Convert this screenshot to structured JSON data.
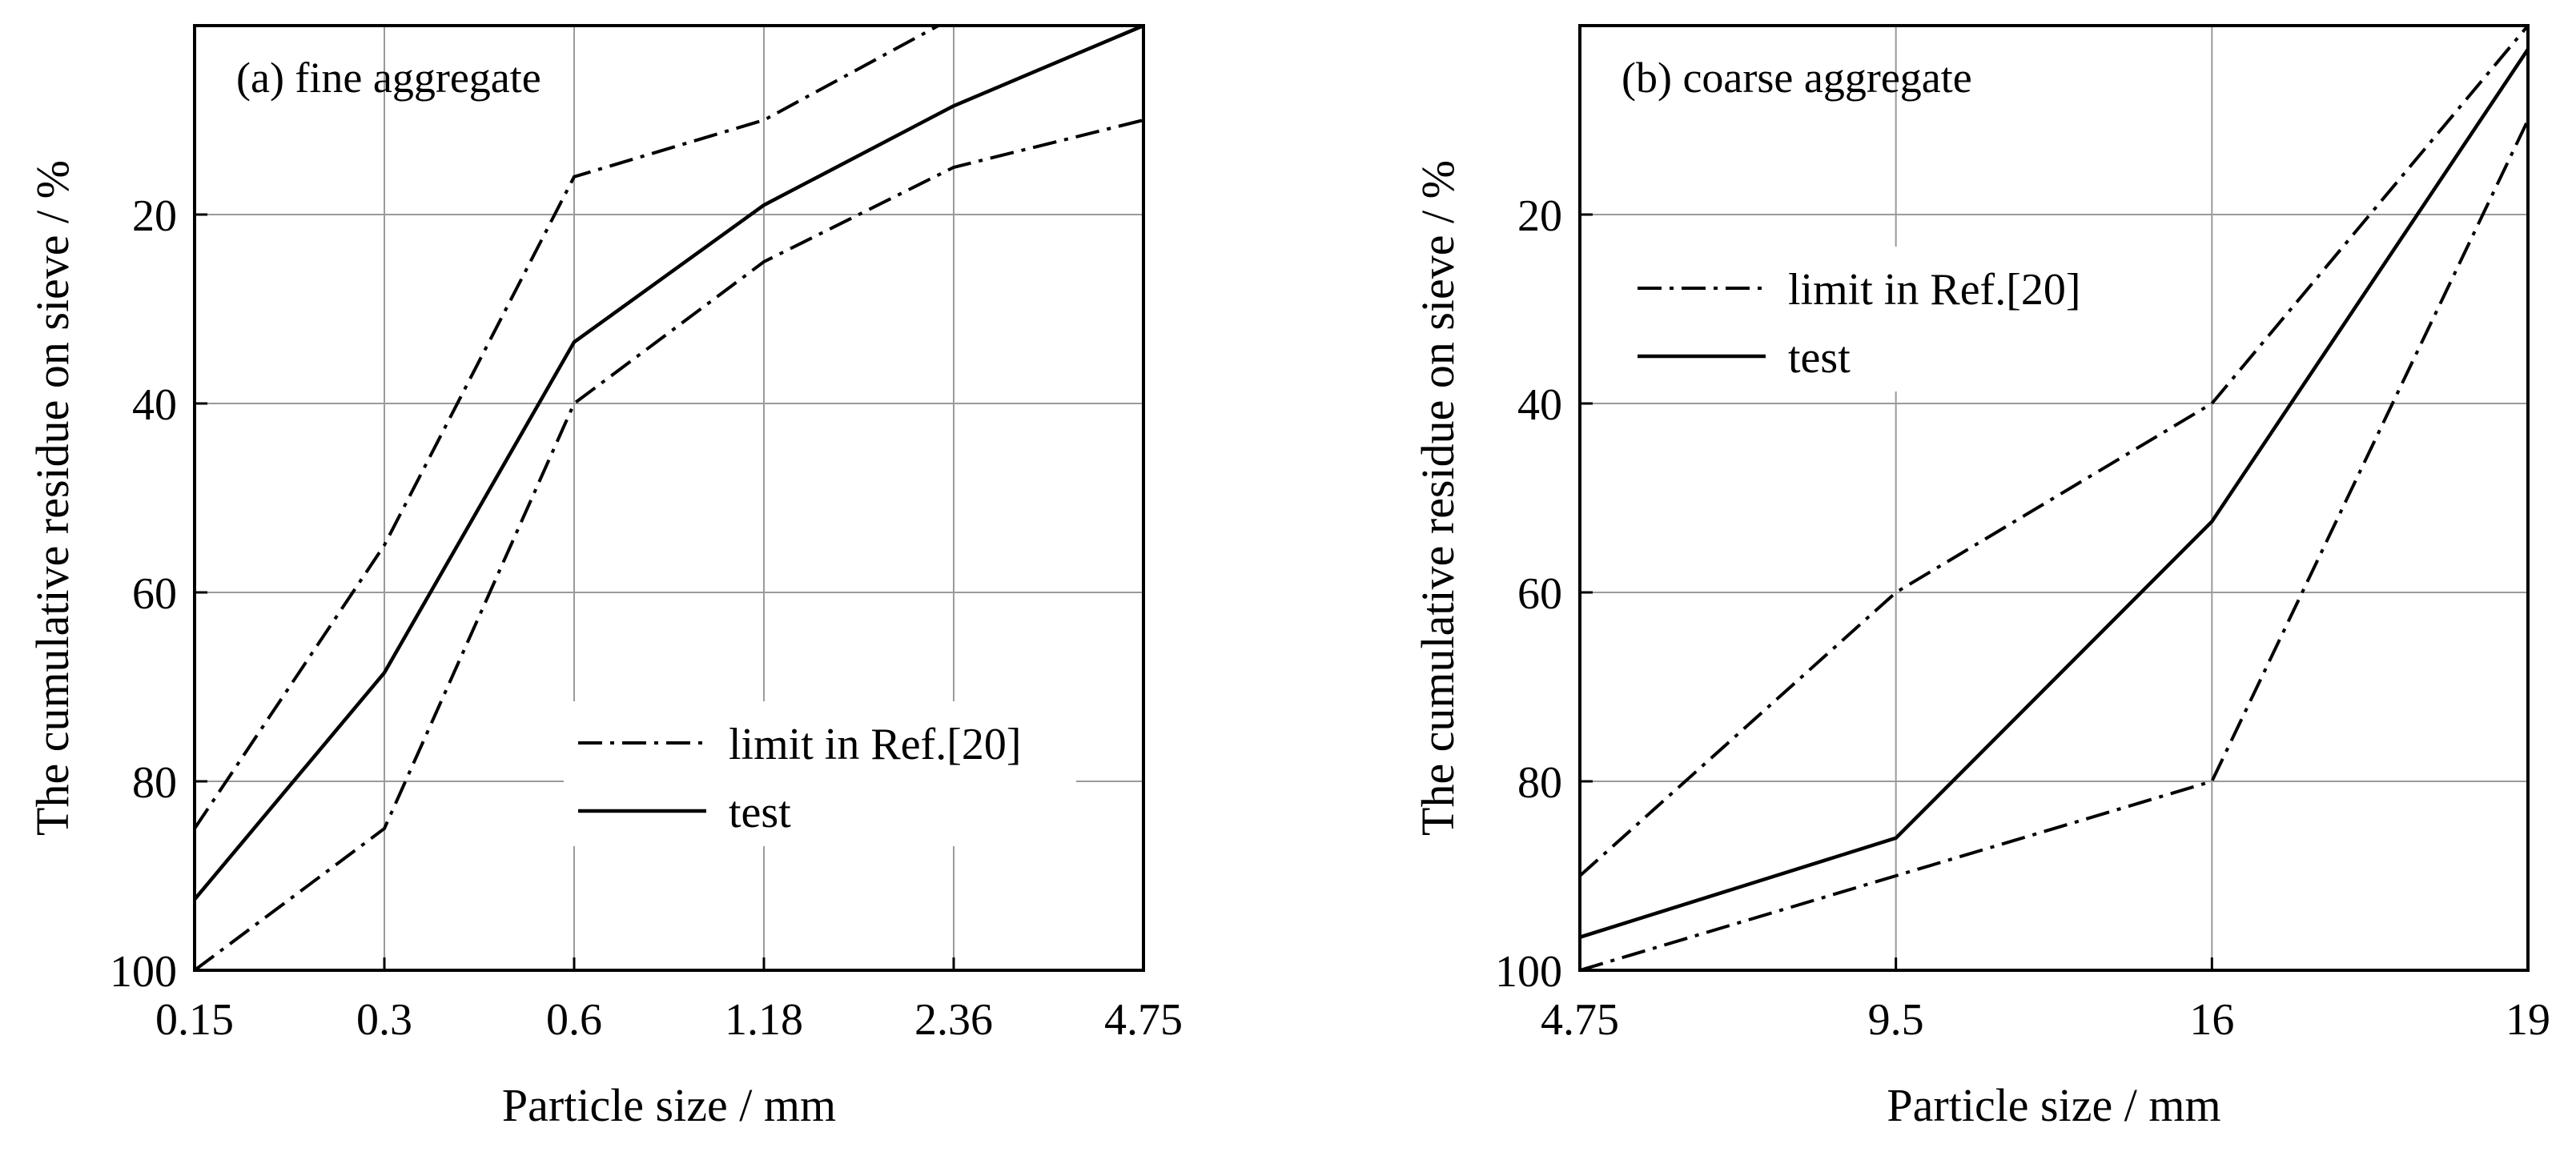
{
  "chart_data": [
    {
      "type": "line",
      "panel_title": "(a) fine aggregate",
      "xlabel": "Particle size / mm",
      "ylabel": "The cumulative residue on sieve / %",
      "categories": [
        "0.15",
        "0.3",
        "0.6",
        "1.18",
        "2.36",
        "4.75"
      ],
      "yticks": [
        "20",
        "40",
        "60",
        "80",
        "100"
      ],
      "ylim": [
        0,
        100
      ],
      "y_inverted": true,
      "grid": true,
      "legend_position": "lower-right",
      "series": [
        {
          "name": "limit in Ref.[20]",
          "role": "upper",
          "style": "dash-dot",
          "values": [
            85,
            55,
            16,
            10,
            0,
            null
          ]
        },
        {
          "name": "limit in Ref.[20]",
          "role": "lower",
          "style": "dash-dot",
          "values": [
            100,
            85,
            40,
            25,
            15,
            10
          ]
        },
        {
          "name": "test",
          "role": "test",
          "style": "solid",
          "values": [
            92.5,
            68.5,
            33.5,
            19,
            8.5,
            0
          ]
        }
      ],
      "legend": [
        {
          "label": "limit in Ref.[20]",
          "style": "dash-dot"
        },
        {
          "label": "test",
          "style": "solid"
        }
      ]
    },
    {
      "type": "line",
      "panel_title": "(b) coarse aggregate",
      "xlabel": "Particle size / mm",
      "ylabel": "The cumulative residue on sieve / %",
      "categories": [
        "4.75",
        "9.5",
        "16",
        "19"
      ],
      "yticks": [
        "20",
        "40",
        "60",
        "80",
        "100"
      ],
      "ylim": [
        0,
        100
      ],
      "y_inverted": true,
      "grid": true,
      "legend_position": "upper-left",
      "series": [
        {
          "name": "limit in Ref.[20]",
          "role": "upper",
          "style": "dash-dot",
          "values": [
            90,
            60,
            40,
            0
          ]
        },
        {
          "name": "limit in Ref.[20]",
          "role": "lower",
          "style": "dash-dot",
          "values": [
            100,
            90,
            80,
            10
          ]
        },
        {
          "name": "test",
          "role": "test",
          "style": "solid",
          "values": [
            96.5,
            86,
            52.5,
            2.5
          ]
        }
      ],
      "legend": [
        {
          "label": "limit in Ref.[20]",
          "style": "dash-dot"
        },
        {
          "label": "test",
          "style": "solid"
        }
      ]
    }
  ]
}
